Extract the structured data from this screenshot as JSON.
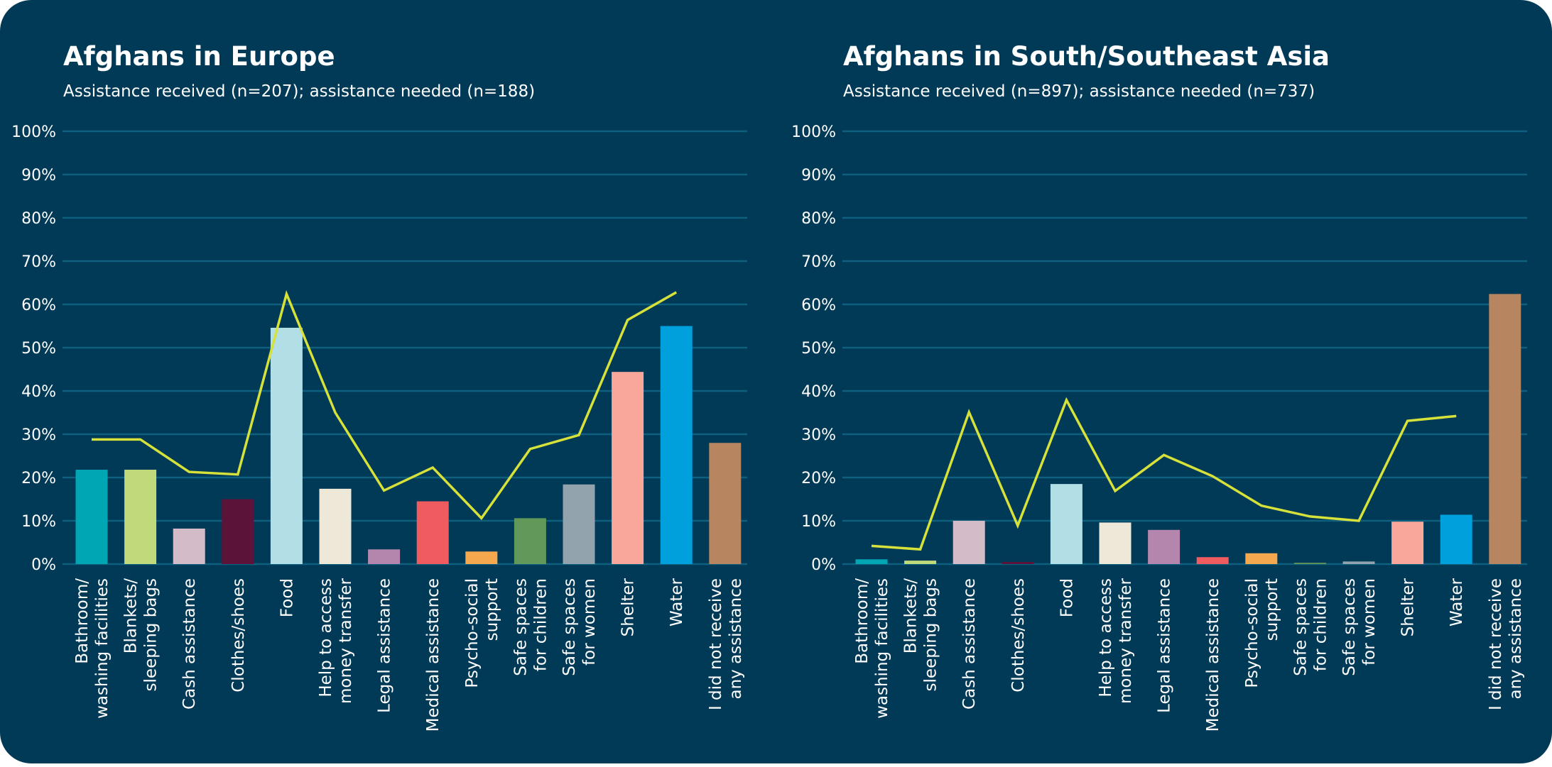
{
  "colors": {
    "background": "#003a57",
    "gridline": "#0f5f7e",
    "line": "#d6e13a"
  },
  "chart_data": [
    {
      "type": "bar",
      "title": "Afghans in Europe",
      "subtitle": "Assistance received (n=207); assistance needed (n=188)",
      "categories": [
        [
          "Bathroom/",
          "washing facilities"
        ],
        [
          "Blankets/",
          "sleeping bags"
        ],
        [
          "Cash assistance"
        ],
        [
          "Clothes/shoes"
        ],
        [
          "Food"
        ],
        [
          "Help to access",
          "money transfer"
        ],
        [
          "Legal assistance"
        ],
        [
          "Medical assistance"
        ],
        [
          "Psycho-social",
          "support"
        ],
        [
          "Safe spaces",
          "for children"
        ],
        [
          "Safe spaces",
          "for women"
        ],
        [
          "Shelter"
        ],
        [
          "Water"
        ],
        [
          "I did not receive",
          "any assistance"
        ]
      ],
      "bar_colors": [
        "#00a6b3",
        "#c0d97a",
        "#d3bcc8",
        "#5c1339",
        "#b2dfe5",
        "#eee8d8",
        "#b486ad",
        "#ef5b5f",
        "#f6a84e",
        "#62985a",
        "#93a3ad",
        "#f9a79b",
        "#00a0dc",
        "#b78560"
      ],
      "series": [
        {
          "type": "bar",
          "values": [
            21.8,
            21.8,
            8.2,
            15.0,
            54.6,
            17.4,
            3.4,
            14.5,
            2.9,
            10.6,
            18.4,
            44.4,
            55.0,
            28.0
          ]
        },
        {
          "type": "line",
          "values": [
            28.8,
            28.8,
            21.3,
            20.7,
            62.4,
            35.0,
            17.0,
            22.3,
            10.6,
            26.6,
            29.8,
            56.4,
            62.8,
            null
          ]
        }
      ],
      "yticks": [
        "0%",
        "10%",
        "20%",
        "30%",
        "40%",
        "50%",
        "60%",
        "70%",
        "80%",
        "90%",
        "100%"
      ],
      "ylim": [
        0,
        100
      ],
      "grid": true
    },
    {
      "type": "bar",
      "title": "Afghans in South/Southeast Asia",
      "subtitle": "Assistance received (n=897); assistance needed (n=737)",
      "categories": [
        [
          "Bathroom/",
          "washing facilities"
        ],
        [
          "Blankets/",
          "sleeping bags"
        ],
        [
          "Cash assistance"
        ],
        [
          "Clothes/shoes"
        ],
        [
          "Food"
        ],
        [
          "Help to access",
          "money transfer"
        ],
        [
          "Legal assistance"
        ],
        [
          "Medical assistance"
        ],
        [
          "Psycho-social",
          "support"
        ],
        [
          "Safe spaces",
          "for children"
        ],
        [
          "Safe spaces",
          "for women"
        ],
        [
          "Shelter"
        ],
        [
          "Water"
        ],
        [
          "I did not receive",
          "any assistance"
        ]
      ],
      "bar_colors": [
        "#00a6b3",
        "#c0d97a",
        "#d3bcc8",
        "#5c1339",
        "#b2dfe5",
        "#eee8d8",
        "#b486ad",
        "#ef5b5f",
        "#f6a84e",
        "#62985a",
        "#93a3ad",
        "#f9a79b",
        "#00a0dc",
        "#b78560"
      ],
      "series": [
        {
          "type": "bar",
          "values": [
            1.1,
            0.8,
            10.0,
            0.5,
            18.5,
            9.6,
            7.9,
            1.6,
            2.5,
            0.3,
            0.6,
            9.8,
            11.4,
            62.4
          ]
        },
        {
          "type": "line",
          "values": [
            4.2,
            3.4,
            35.1,
            8.9,
            37.9,
            16.9,
            25.2,
            20.3,
            13.5,
            11.0,
            10.0,
            33.1,
            34.2,
            null
          ]
        }
      ],
      "yticks": [
        "0%",
        "10%",
        "20%",
        "30%",
        "40%",
        "50%",
        "60%",
        "70%",
        "80%",
        "90%",
        "100%"
      ],
      "ylim": [
        0,
        100
      ],
      "grid": true
    }
  ]
}
